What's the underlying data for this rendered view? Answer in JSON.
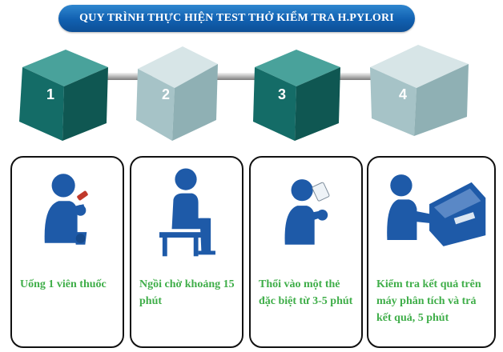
{
  "title": "QUY TRÌNH THỰC HIỆN TEST THỞ KIỂM TRA H.PYLORI",
  "colors": {
    "title_bg": "#1160b0",
    "cube_dark": "#17736e",
    "cube_light": "#a6c3c7",
    "caption": "#3fae49",
    "icon": "#1e5aa8"
  },
  "steps": [
    {
      "number": "1",
      "tone": "dark",
      "caption": "Uống 1 viên thuốc"
    },
    {
      "number": "2",
      "tone": "light",
      "caption": "Ngồi chờ khoảng 15 phút"
    },
    {
      "number": "3",
      "tone": "dark",
      "caption": "Thổi vào một thẻ đặc biệt từ 3-5 phút"
    },
    {
      "number": "4",
      "tone": "light",
      "caption": "Kiểm tra kết quả trên máy phân tích và trả kết quả, 5 phút"
    }
  ]
}
